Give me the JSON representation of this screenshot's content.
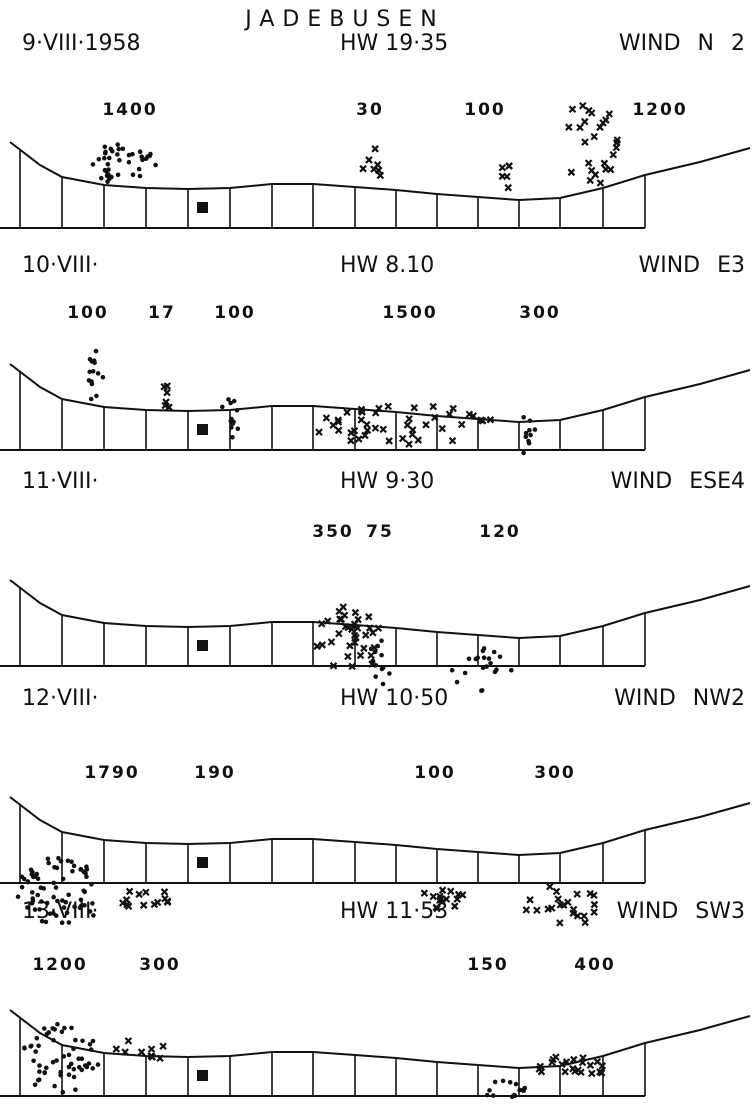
{
  "title": "JADEBUSEN",
  "panels": [
    {
      "date": "9·VIII·1958",
      "hw": "HW 19·35",
      "wind": "WIND N 2",
      "counts": [
        1400,
        30,
        100,
        1200
      ]
    },
    {
      "date": "10·VIII·",
      "hw": "HW 8.10",
      "wind": "WIND E3",
      "counts": [
        100,
        17,
        100,
        1500,
        300
      ]
    },
    {
      "date": "11·VIII·",
      "hw": "HW 9·30",
      "wind": "WIND ESE4",
      "counts": [
        350,
        75,
        120
      ]
    },
    {
      "date": "12·VIII·",
      "hw": "HW 10·50",
      "wind": "WIND NW2",
      "counts": [
        1790,
        190,
        100,
        300
      ]
    },
    {
      "date": "13·VIII·",
      "hw": "HW 11·53",
      "wind": "WIND SW3",
      "counts": [
        1200,
        300,
        150,
        400
      ]
    }
  ]
}
